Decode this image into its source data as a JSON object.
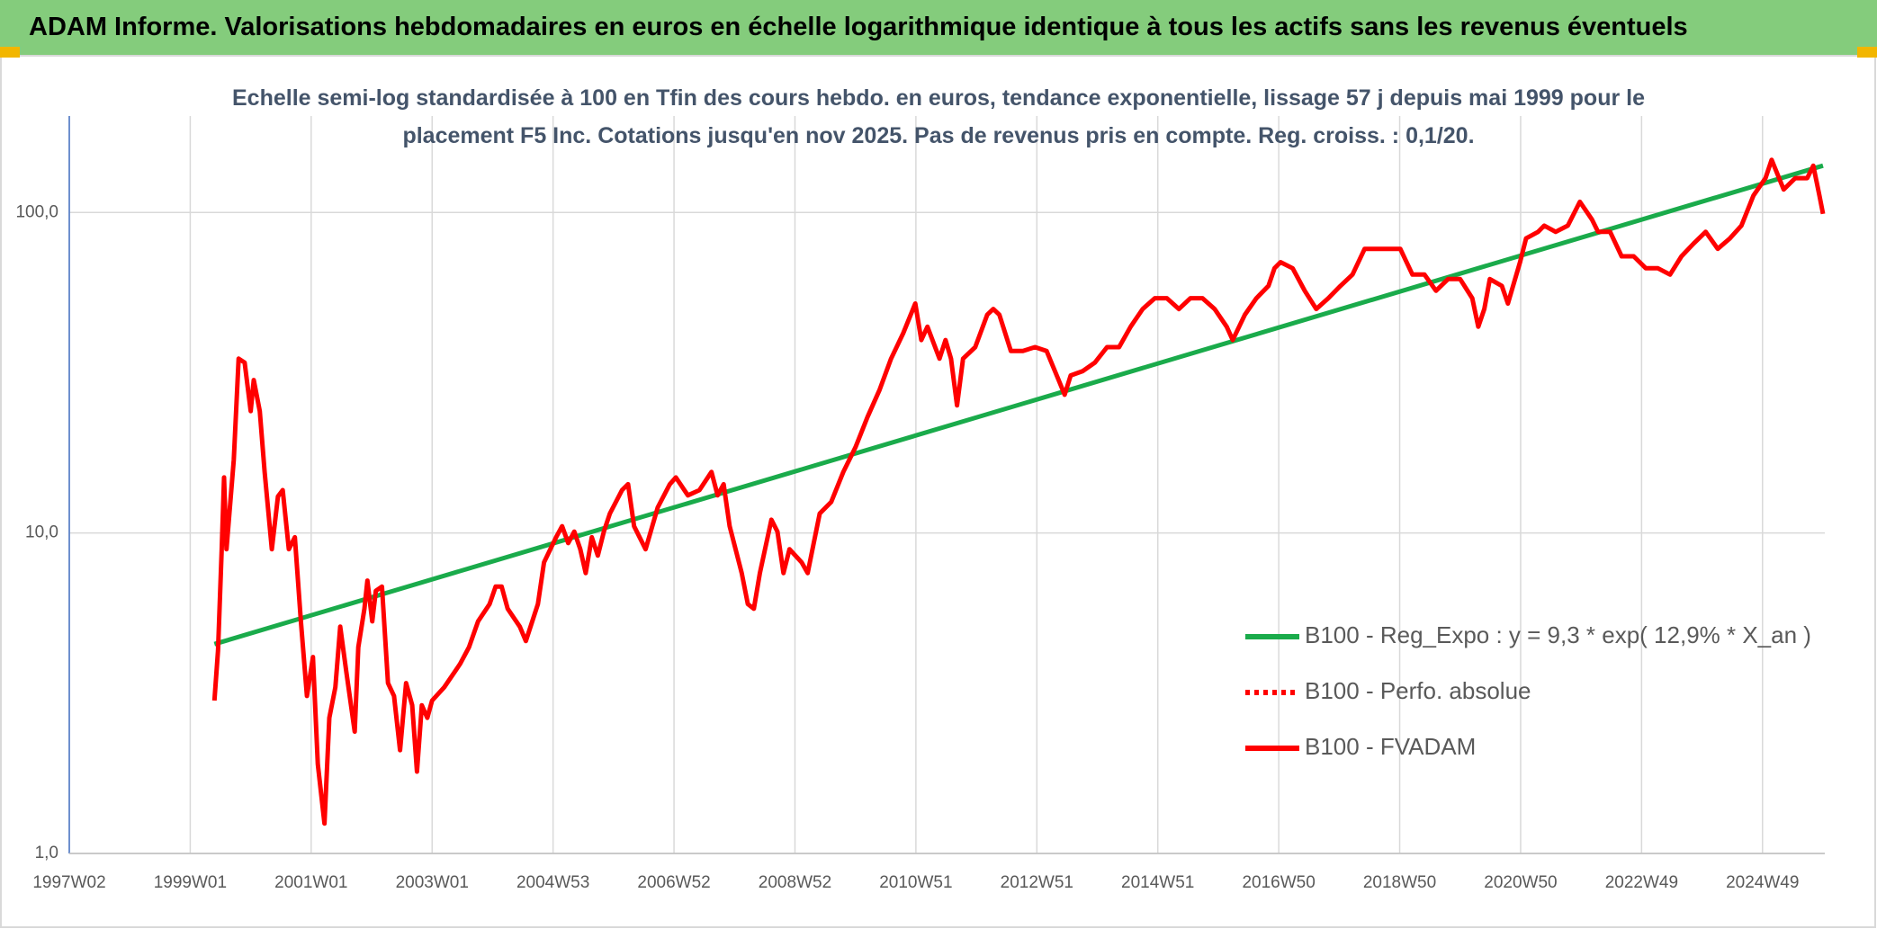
{
  "header": {
    "title": "ADAM Informe. Valorisations hebdomadaires en euros en échelle logarithmique identique à tous les actifs sans les revenus éventuels"
  },
  "chart_data": {
    "type": "line",
    "subtitle": [
      "Echelle semi-log standardisée à 100 en Tfin des cours hebdo. en euros, tendance exponentielle, lissage 57 j depuis mai 1999 pour le",
      "placement F5 Inc. Cotations jusqu'en nov 2025. Pas de revenus pris en compte. Reg. croiss. : 0,1/20."
    ],
    "yscale": "log",
    "grid": true,
    "legend": "lower right",
    "xlim": [
      1997,
      2026.03
    ],
    "ylim": [
      1,
      200
    ],
    "xticks": [
      {
        "value": 1997,
        "label": "1997W02"
      },
      {
        "value": 1999,
        "label": "1999W01"
      },
      {
        "value": 2001,
        "label": "2001W01"
      },
      {
        "value": 2003,
        "label": "2003W01"
      },
      {
        "value": 2005,
        "label": "2004W53"
      },
      {
        "value": 2007,
        "label": "2006W52"
      },
      {
        "value": 2009,
        "label": "2008W52"
      },
      {
        "value": 2011,
        "label": "2010W51"
      },
      {
        "value": 2013,
        "label": "2012W51"
      },
      {
        "value": 2015,
        "label": "2014W51"
      },
      {
        "value": 2017,
        "label": "2016W50"
      },
      {
        "value": 2019,
        "label": "2018W50"
      },
      {
        "value": 2021,
        "label": "2020W50"
      },
      {
        "value": 2023,
        "label": "2022W49"
      },
      {
        "value": 2025,
        "label": "2024W49"
      }
    ],
    "yticks": [
      {
        "value": 1,
        "label": "1,0"
      },
      {
        "value": 10,
        "label": "10,0"
      },
      {
        "value": 100,
        "label": "100,0"
      }
    ],
    "series": [
      {
        "name": "B100 - Reg_Expo : y = 9,3 * exp( 12,9% *  X_an )",
        "color": "#1aab4b",
        "dash": "solid",
        "x": [
          1999.4,
          2026.0
        ],
        "values": [
          4.5,
          140
        ]
      },
      {
        "name": "B100 - Perfo. absolue",
        "color": "#ff0000",
        "dash": "dotted",
        "x": [],
        "values": []
      },
      {
        "name": "B100 - FVADAM",
        "color": "#ff0000",
        "dash": "solid",
        "x": [
          1999.4,
          1999.46,
          1999.52,
          1999.56,
          1999.6,
          1999.72,
          1999.8,
          1999.9,
          2000.0,
          2000.05,
          2000.15,
          2000.23,
          2000.35,
          2000.45,
          2000.53,
          2000.63,
          2000.73,
          2000.83,
          2000.93,
          2001.03,
          2001.11,
          2001.22,
          2001.3,
          2001.4,
          2001.48,
          2001.58,
          2001.72,
          2001.78,
          2001.88,
          2001.93,
          2002.01,
          2002.07,
          2002.17,
          2002.27,
          2002.37,
          2002.47,
          2002.57,
          2002.67,
          2002.75,
          2002.83,
          2002.92,
          2003.0,
          2003.2,
          2003.46,
          2003.61,
          2003.76,
          2003.95,
          2004.05,
          2004.15,
          2004.25,
          2004.45,
          2004.55,
          2004.75,
          2004.85,
          2005.05,
          2005.15,
          2005.25,
          2005.35,
          2005.45,
          2005.54,
          2005.64,
          2005.74,
          2005.84,
          2005.94,
          2006.14,
          2006.24,
          2006.34,
          2006.53,
          2006.73,
          2006.93,
          2007.03,
          2007.23,
          2007.42,
          2007.62,
          2007.72,
          2007.82,
          2007.92,
          2008.12,
          2008.22,
          2008.32,
          2008.42,
          2008.61,
          2008.71,
          2008.81,
          2008.91,
          2009.11,
          2009.21,
          2009.41,
          2009.6,
          2009.8,
          2010.0,
          2010.2,
          2010.4,
          2010.59,
          2010.79,
          2010.99,
          2011.09,
          2011.19,
          2011.39,
          2011.49,
          2011.58,
          2011.68,
          2011.78,
          2011.98,
          2012.18,
          2012.28,
          2012.38,
          2012.57,
          2012.77,
          2012.97,
          2013.16,
          2013.36,
          2013.46,
          2013.56,
          2013.76,
          2013.96,
          2014.16,
          2014.36,
          2014.55,
          2014.75,
          2014.95,
          2015.15,
          2015.35,
          2015.54,
          2015.74,
          2015.94,
          2016.14,
          2016.24,
          2016.44,
          2016.63,
          2016.83,
          2016.93,
          2017.03,
          2017.23,
          2017.43,
          2017.62,
          2017.82,
          2018.02,
          2018.22,
          2018.42,
          2018.61,
          2018.81,
          2019.01,
          2019.21,
          2019.41,
          2019.6,
          2019.8,
          2020.0,
          2020.2,
          2020.3,
          2020.4,
          2020.49,
          2020.69,
          2020.79,
          2020.99,
          2021.09,
          2021.29,
          2021.39,
          2021.58,
          2021.78,
          2021.98,
          2022.18,
          2022.28,
          2022.48,
          2022.67,
          2022.87,
          2023.07,
          2023.27,
          2023.47,
          2023.66,
          2023.86,
          2024.06,
          2024.26,
          2024.46,
          2024.65,
          2024.85,
          2025.05,
          2025.15,
          2025.35,
          2025.54,
          2025.74,
          2025.84,
          2025.94,
          2026.0
        ],
        "values": [
          3.0,
          4.3,
          8.9,
          14.9,
          8.9,
          16.9,
          35,
          34,
          24,
          30,
          24,
          15.5,
          8.9,
          13,
          13.6,
          8.9,
          9.7,
          5.3,
          3.1,
          4.1,
          1.9,
          1.24,
          2.65,
          3.3,
          5.1,
          3.7,
          2.4,
          4.4,
          5.8,
          7.1,
          5.3,
          6.6,
          6.8,
          3.4,
          3.1,
          2.1,
          3.4,
          2.9,
          1.8,
          2.9,
          2.65,
          3.0,
          3.3,
          3.9,
          4.4,
          5.3,
          6.0,
          6.8,
          6.8,
          5.8,
          5.1,
          4.6,
          6.0,
          8.1,
          9.7,
          10.5,
          9.3,
          10.1,
          8.9,
          7.5,
          9.7,
          8.5,
          10.1,
          11.5,
          13.6,
          14.2,
          10.5,
          8.9,
          12.0,
          14.2,
          14.9,
          13.1,
          13.6,
          15.5,
          13.1,
          14.2,
          10.5,
          7.5,
          6.0,
          5.8,
          7.5,
          11.0,
          10.1,
          7.5,
          8.9,
          8.1,
          7.5,
          11.5,
          12.5,
          15.5,
          18.5,
          23,
          28,
          35,
          42,
          52,
          40,
          44,
          35,
          40,
          35,
          25,
          35,
          38,
          48,
          50,
          48,
          37,
          37,
          38,
          37,
          30,
          27,
          31,
          32,
          34,
          38,
          38,
          44,
          50,
          54,
          54,
          50,
          54,
          54,
          50,
          44,
          40,
          48,
          54,
          59,
          67,
          70,
          67,
          57,
          50,
          54,
          59,
          64,
          77,
          77,
          77,
          77,
          64,
          64,
          57,
          62,
          62,
          54,
          44,
          50,
          62,
          59,
          52,
          70,
          83,
          87,
          91,
          87,
          91,
          108,
          95,
          87,
          87,
          73,
          73,
          67,
          67,
          64,
          73,
          80,
          87,
          77,
          83,
          91,
          113,
          128,
          146,
          118,
          128,
          128,
          140,
          113,
          99
        ]
      }
    ]
  }
}
